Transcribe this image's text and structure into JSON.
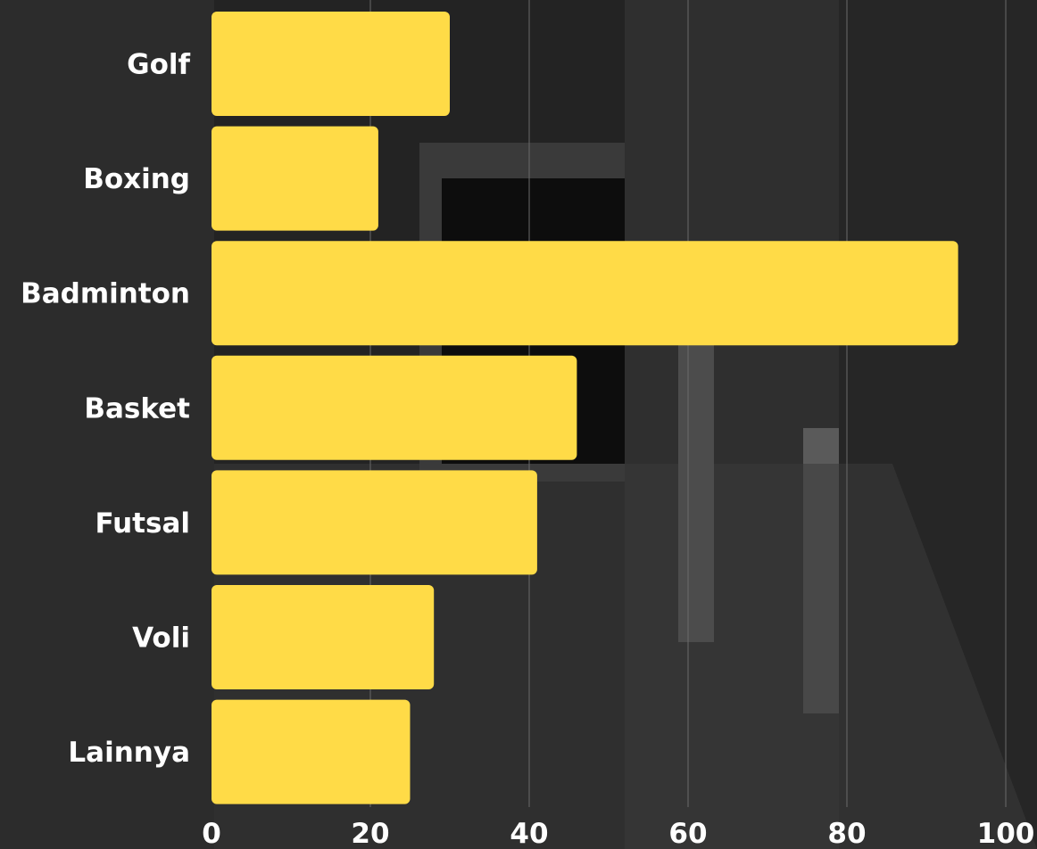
{
  "chart_data": {
    "type": "bar",
    "orientation": "horizontal",
    "categories": [
      "Golf",
      "Boxing",
      "Badminton",
      "Basket",
      "Futsal",
      "Voli",
      "Lainnya"
    ],
    "values": [
      30,
      21,
      94,
      46,
      41,
      28,
      25
    ],
    "xticks": [
      "0",
      "20",
      "40",
      "60",
      "80",
      "100"
    ],
    "xlim": [
      0,
      100
    ],
    "grid": true,
    "bar_color": "#FFDB47",
    "label_color": "#FFFFFF",
    "grid_color": "#6A6A6A"
  }
}
